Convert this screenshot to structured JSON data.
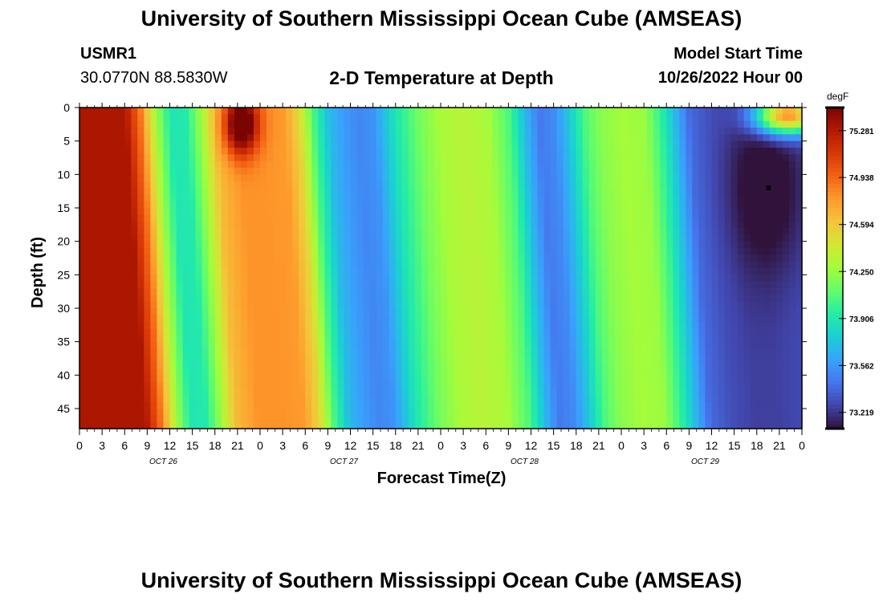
{
  "header": {
    "title": "University of Southern Mississippi Ocean Cube (AMSEAS)",
    "station": "USMR1",
    "coords": "30.0770N  88.5830W",
    "plot_title": "2-D Temperature at Depth",
    "start_label": "Model Start Time",
    "start_value": "10/26/2022 Hour 00"
  },
  "footer": {
    "title": "University of Southern Mississippi Ocean Cube (AMSEAS)"
  },
  "colorbar": {
    "unit": "degF",
    "ticks": [
      "75.281",
      "74.938",
      "74.594",
      "74.250",
      "73.906",
      "73.562",
      "73.219"
    ],
    "colors": [
      "#30123b",
      "#4145ab",
      "#4675ed",
      "#39a2fc",
      "#1bcfd4",
      "#24eca6",
      "#61fc6c",
      "#a4fc3b",
      "#d1e834",
      "#f3c63a",
      "#fe9b2d",
      "#f36315",
      "#d93806",
      "#b11901",
      "#7a0402"
    ]
  },
  "chart_data": {
    "type": "heatmap",
    "title": "2-D Temperature at Depth",
    "xlabel": "Forecast Time(Z)",
    "ylabel": "Depth (ft)",
    "x_tick_labels": [
      "0",
      "3",
      "6",
      "9",
      "12",
      "15",
      "18",
      "21",
      "0",
      "3",
      "6",
      "9",
      "12",
      "15",
      "18",
      "21",
      "0",
      "3",
      "6",
      "9",
      "12",
      "15",
      "18",
      "21",
      "0",
      "3",
      "6",
      "9",
      "12",
      "15",
      "18",
      "21",
      "0"
    ],
    "date_labels": [
      "OCT 26",
      "OCT 27",
      "OCT 28",
      "OCT 29"
    ],
    "y_ticks": [
      0,
      5,
      10,
      15,
      20,
      25,
      30,
      35,
      40,
      45
    ],
    "ylim": [
      0,
      48
    ],
    "x_hours_range": [
      0,
      96
    ],
    "zlim": [
      73.1,
      75.45
    ],
    "surface_profile": [
      [
        0,
        75.3
      ],
      [
        6,
        75.3
      ],
      [
        8,
        74.9
      ],
      [
        10,
        74.3
      ],
      [
        12,
        73.9
      ],
      [
        14,
        73.92
      ],
      [
        16,
        74.25
      ],
      [
        18,
        74.65
      ],
      [
        21,
        74.8
      ],
      [
        24,
        74.8
      ],
      [
        27,
        74.78
      ],
      [
        29,
        74.55
      ],
      [
        31,
        74.05
      ],
      [
        33,
        73.7
      ],
      [
        35,
        73.58
      ],
      [
        37,
        73.5
      ],
      [
        39,
        73.55
      ],
      [
        42,
        73.9
      ],
      [
        45,
        74.15
      ],
      [
        48,
        74.3
      ],
      [
        51,
        74.35
      ],
      [
        54,
        74.3
      ],
      [
        57,
        74.05
      ],
      [
        59,
        73.7
      ],
      [
        61,
        73.45
      ],
      [
        63,
        73.52
      ],
      [
        65,
        73.75
      ],
      [
        67,
        74.05
      ],
      [
        69,
        74.2
      ],
      [
        72,
        74.28
      ],
      [
        75,
        74.25
      ],
      [
        77,
        74.0
      ],
      [
        79,
        73.7
      ],
      [
        81,
        73.4
      ],
      [
        84,
        73.3
      ],
      [
        87,
        73.25
      ],
      [
        90,
        73.25
      ],
      [
        93,
        73.28
      ],
      [
        96,
        73.3
      ]
    ],
    "features": [
      {
        "label": "warm surface plume",
        "hour": 21.5,
        "depth": 2.5,
        "hour_sigma": 1.6,
        "depth_sigma": 3.2,
        "delta": 0.9
      },
      {
        "label": "warm surface cap",
        "hour": 94,
        "depth": 1.2,
        "hour_sigma": 3.0,
        "depth_sigma": 2.0,
        "delta": 1.6
      },
      {
        "label": "cold core",
        "hour": 91.5,
        "depth": 12,
        "hour_sigma": 3.5,
        "depth_sigma": 9.0,
        "delta": -0.25
      }
    ]
  }
}
